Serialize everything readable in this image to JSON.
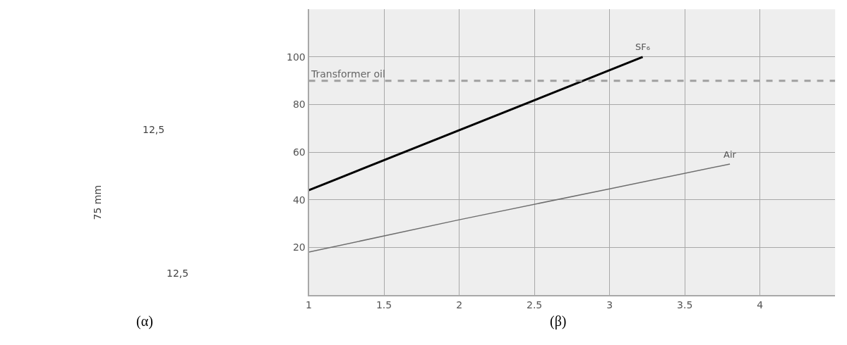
{
  "chart_data": [
    {
      "type": "other",
      "annotations": [
        "12,5",
        "75 mm",
        "12,5",
        "(α)"
      ]
    },
    {
      "type": "line",
      "xlim": [
        1,
        4.5
      ],
      "xticks": [
        1,
        1.5,
        2,
        2.5,
        3,
        3.5,
        4
      ],
      "ylim": [
        0,
        120
      ],
      "yticks": [
        20,
        40,
        60,
        80,
        100
      ],
      "grid": true,
      "legend": false,
      "marker": "none",
      "line_style": "solid",
      "series": [
        {
          "name": "SF₆",
          "color": "#000000",
          "x": [
            1,
            3.22
          ],
          "values": [
            44,
            100
          ]
        },
        {
          "name": "Air",
          "color": "#6e6e6e",
          "x": [
            1,
            2,
            3,
            3.8
          ],
          "values": [
            18,
            31.6,
            44.6,
            55
          ]
        }
      ],
      "ref_lines": [
        {
          "axis": "y",
          "value": 90,
          "label": "Transformer oil",
          "color": "#a0a0a0",
          "line_style": "dashed"
        }
      ],
      "annotations": [
        "(β)"
      ]
    }
  ]
}
